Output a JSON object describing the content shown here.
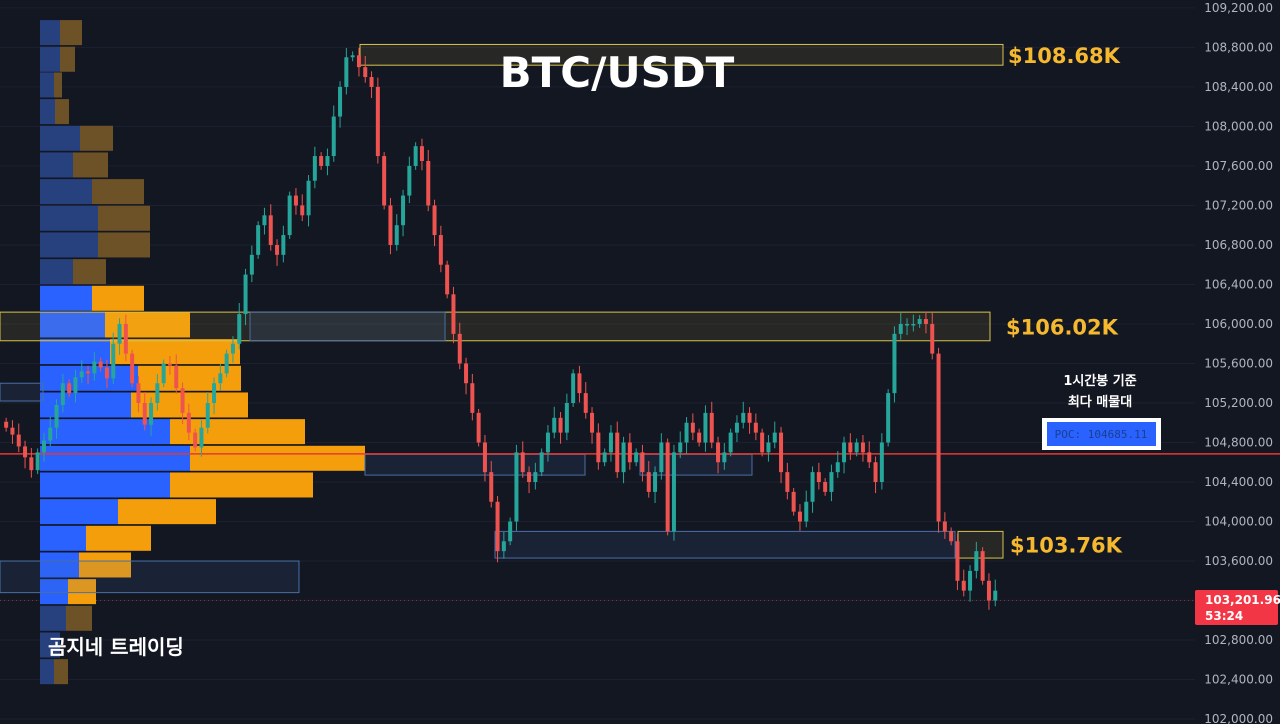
{
  "chart_data": {
    "type": "candlestick",
    "title": "BTC/USDT",
    "ylim": [
      101950,
      109280
    ],
    "yticks": [
      "109,200.00",
      "108,800.00",
      "108,400.00",
      "108,000.00",
      "107,600.00",
      "107,200.00",
      "106,800.00",
      "106,400.00",
      "106,000.00",
      "105,600.00",
      "105,200.00",
      "104,800.00",
      "104,400.00",
      "104,000.00",
      "103,600.00",
      "103,200.00",
      "102,800.00",
      "102,400.00",
      "102,000.00"
    ],
    "ytick_values": [
      109200,
      108800,
      108400,
      108000,
      107600,
      107200,
      106800,
      106400,
      106000,
      105600,
      105200,
      104800,
      104400,
      104000,
      103600,
      103200,
      102800,
      102400,
      102000
    ],
    "price": {
      "value": 103201.96,
      "label": "103,201.96",
      "countdown": "53:24"
    },
    "poc": {
      "value": 104685.11,
      "label": "POC: 104685.11",
      "note_line1": "1시간봉 기준",
      "note_line2": "최다 매물대"
    },
    "zones": [
      {
        "low": 108620,
        "high": 108830,
        "label": "$108.68K",
        "style": "yellow"
      },
      {
        "low": 105830,
        "high": 106120,
        "label": "$106.02K",
        "style": "yellow"
      },
      {
        "low": 103630,
        "high": 103900,
        "label": "$103.76K",
        "style": "yellow"
      }
    ],
    "closes": [
      104950,
      104880,
      104760,
      104650,
      104520,
      104700,
      104820,
      104950,
      105180,
      105400,
      105300,
      105460,
      105520,
      105500,
      105620,
      105560,
      105450,
      105800,
      106000,
      105700,
      105400,
      105200,
      104980,
      105200,
      105400,
      105600,
      105580,
      105350,
      105100,
      104900,
      104750,
      104950,
      105200,
      105400,
      105500,
      105700,
      105800,
      106100,
      106500,
      106700,
      107000,
      107100,
      106800,
      106700,
      106900,
      107300,
      107200,
      107100,
      107450,
      107700,
      107600,
      107700,
      108100,
      108400,
      108700,
      108720,
      108600,
      108500,
      108400,
      107700,
      107200,
      106800,
      107000,
      107300,
      107600,
      107800,
      107650,
      107200,
      106900,
      106600,
      106300,
      105900,
      105600,
      105400,
      105100,
      104800,
      104500,
      104200,
      103700,
      103800,
      104000,
      104700,
      104500,
      104400,
      104500,
      104700,
      104900,
      105050,
      104900,
      105200,
      105500,
      105300,
      105100,
      104900,
      104600,
      104700,
      104900,
      104500,
      104800,
      104600,
      104700,
      104500,
      104300,
      104500,
      104800,
      103900,
      104700,
      104800,
      105000,
      104900,
      104800,
      105100,
      104800,
      104600,
      104700,
      104900,
      105000,
      105100,
      105000,
      104900,
      104700,
      104800,
      104900,
      104500,
      104300,
      104100,
      104000,
      104200,
      104500,
      104400,
      104300,
      104500,
      104600,
      104800,
      104700,
      104800,
      104700,
      104600,
      104400,
      104800,
      105300,
      105900,
      106000,
      106000,
      106000,
      106050,
      106000,
      105700,
      104000,
      103900,
      103800,
      103400,
      103300,
      103500,
      103700,
      103400,
      103200,
      103300
    ],
    "volume_profile": [
      {
        "price": 108950,
        "buy": 20,
        "sell": 22
      },
      {
        "price": 108680,
        "buy": 20,
        "sell": 15
      },
      {
        "price": 108420,
        "buy": 14,
        "sell": 8
      },
      {
        "price": 108150,
        "buy": 15,
        "sell": 14
      },
      {
        "price": 107880,
        "buy": 40,
        "sell": 33
      },
      {
        "price": 107610,
        "buy": 33,
        "sell": 35
      },
      {
        "price": 107340,
        "buy": 52,
        "sell": 52
      },
      {
        "price": 107070,
        "buy": 58,
        "sell": 52
      },
      {
        "price": 106800,
        "buy": 58,
        "sell": 52
      },
      {
        "price": 106530,
        "buy": 33,
        "sell": 33
      },
      {
        "price": 106260,
        "buy": 52,
        "sell": 52
      },
      {
        "price": 105990,
        "buy": 65,
        "sell": 85
      },
      {
        "price": 105720,
        "buy": 70,
        "sell": 130
      },
      {
        "price": 105450,
        "buy": 98,
        "sell": 103
      },
      {
        "price": 105180,
        "buy": 91,
        "sell": 117
      },
      {
        "price": 104910,
        "buy": 130,
        "sell": 135
      },
      {
        "price": 104640,
        "buy": 150,
        "sell": 175
      },
      {
        "price": 104370,
        "buy": 130,
        "sell": 143
      },
      {
        "price": 104100,
        "buy": 78,
        "sell": 98
      },
      {
        "price": 103830,
        "buy": 46,
        "sell": 65
      },
      {
        "price": 103560,
        "buy": 39,
        "sell": 52
      },
      {
        "price": 103290,
        "buy": 28,
        "sell": 28
      },
      {
        "price": 103020,
        "buy": 26,
        "sell": 26
      },
      {
        "price": 102750,
        "buy": 20,
        "sell": 0
      },
      {
        "price": 102480,
        "buy": 14,
        "sell": 14
      }
    ]
  },
  "overlay": {
    "title": "BTC/USDT",
    "brand": "곰지네 트레이딩"
  },
  "colors": {
    "background": "#131722",
    "up": "#26a69a",
    "down": "#ef5350",
    "poc_line": "#e53935",
    "zone_border": "#d8c34a",
    "label_gold": "#f5b82e",
    "vp_buy": "#2962ff",
    "vp_sell": "#f59e0b",
    "price_tag": "#f23645"
  }
}
